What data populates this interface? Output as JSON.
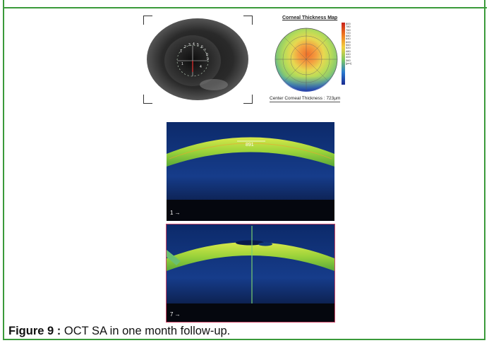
{
  "top_strip": {
    "text": ""
  },
  "map": {
    "title": "Corneal Thickness Map",
    "footer": "Center Corneal Thickness : 723μm",
    "scale_ticks": [
      "800",
      "780",
      "760",
      "720",
      "680",
      "640",
      "600",
      "560",
      "520",
      "480",
      "440",
      "400",
      "360",
      "[µm]"
    ]
  },
  "scans": [
    {
      "label": "1 →",
      "measure": "891"
    },
    {
      "label": "7 →"
    }
  ],
  "caption": {
    "label": "Figure 9 :",
    "text": "OCT SA in one month follow-up."
  }
}
